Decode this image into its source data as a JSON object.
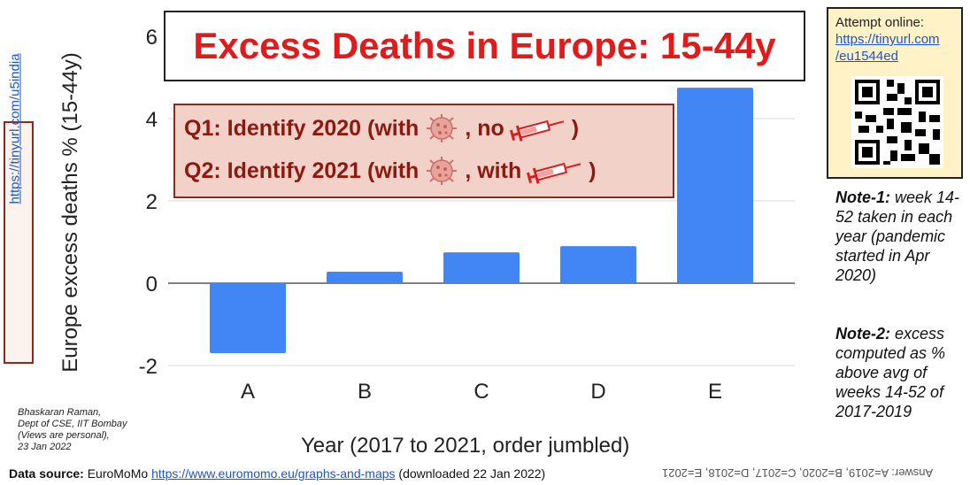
{
  "chart_data": {
    "type": "bar",
    "title": "Excess Deaths in Europe: 15-44y",
    "categories": [
      "A",
      "B",
      "C",
      "D",
      "E"
    ],
    "values": [
      -1.7,
      0.28,
      0.75,
      0.9,
      4.75
    ],
    "ylabel": "Europe excess deaths % (15-44y)",
    "xlabel": "Year (2017 to 2021, order jumbled)",
    "ylim": [
      -2.2,
      6.5
    ],
    "yticks": [
      6,
      4,
      2,
      0,
      -2
    ],
    "bar_color": "#4285f4",
    "grid": true
  },
  "questions": {
    "q1_prefix": "Q1: Identify 2020 (with",
    "q1_mid": ", no",
    "q1_suffix": ")",
    "q2_prefix": "Q2: Identify 2021 (with",
    "q2_mid": ", with",
    "q2_suffix": ")"
  },
  "side_link": "https://tinyurl.com/u5india",
  "attempt": {
    "label": "Attempt online:",
    "link_line1": "https://tinyurl.com",
    "link_line2": "/eu1544ed"
  },
  "notes": {
    "note1_head": "Note-1:",
    "note1_text": " week 14-52 taken in each year (pandemic started in Apr 2020)",
    "note2_head": "Note-2:",
    "note2_text": " excess computed as % above avg of weeks 14-52 of 2017-2019"
  },
  "author": {
    "line1": "Bhaskaran Raman,",
    "line2": "Dept of CSE, IIT Bombay",
    "line3": "(Views are personal),",
    "line4": "23 Jan 2022"
  },
  "source": {
    "head": "Data source:",
    "name": " EuroMoMo ",
    "url": "https://www.euromomo.eu/graphs-and-maps",
    "suffix": " (downloaded 22 Jan 2022)"
  },
  "answer": "Answer: A=2019, B=2020, C=2017, D=2018, E=2021",
  "colors": {
    "accent_red": "#e01b1b",
    "box_red": "#8b1a10",
    "link_blue": "#1a56cc"
  },
  "icons": {
    "virus": "virus-icon",
    "syringe": "syringe-icon",
    "qr": "qr-code-icon"
  }
}
